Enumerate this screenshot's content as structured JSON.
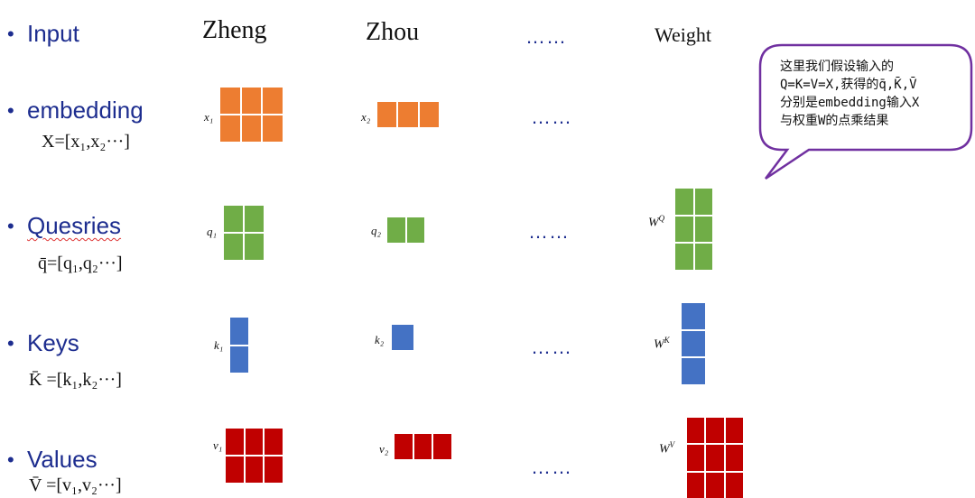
{
  "rows": {
    "input": {
      "label": "Input"
    },
    "embedding": {
      "label": "embedding",
      "formula": "X=[x₁,x₂···]"
    },
    "queries": {
      "label": "Quesries",
      "formula": "q̄=[q₁,q₂···]"
    },
    "keys": {
      "label": "Keys",
      "formula": "K̄ =[k₁,k₂···]"
    },
    "values": {
      "label": "Values",
      "formula": "V̄ =[v₁,v₂···]"
    }
  },
  "columns": {
    "zheng": "Zheng",
    "zhou": "Zhou",
    "ellipsis": "……",
    "weight": "Weight"
  },
  "symbols": {
    "x1": "x₁",
    "x2": "x₂",
    "q1": "q₁",
    "q2": "q₂",
    "k1": "k₁",
    "k2": "k₂",
    "v1": "v₁",
    "v2": "v₂",
    "wq": "W^Q",
    "wk": "W^K",
    "wv": "W^V"
  },
  "ellipsis": "……",
  "callout": {
    "line1": "这里我们假设输入的",
    "line2": "Q=K=V=X,获得的q̄,K̄,V̄",
    "line3": "分别是embedding输入X",
    "line4": "与权重W的点乘结果"
  },
  "colors": {
    "label_blue": "#1d2d8f",
    "orange": "#ed7d31",
    "green": "#70ad47",
    "blue": "#4472c4",
    "red": "#c00000",
    "callout_border": "#7030a0"
  }
}
